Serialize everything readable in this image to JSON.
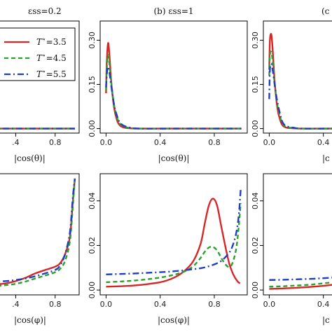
{
  "colors": {
    "red": "#d62728",
    "green": "#2ca02c",
    "blue": "#1f3fbf",
    "axis": "#000000"
  },
  "legend": {
    "placement": "top-left",
    "entries": [
      {
        "label": "T* = 3.5",
        "text_main": "T",
        "text_sup": "⋆",
        "text_val": "=3.5",
        "color": "#d62728",
        "dash": "solid"
      },
      {
        "label": "T* = 4.5",
        "text_main": "T",
        "text_sup": "⋆",
        "text_val": "=4.5",
        "color": "#2ca02c",
        "dash": "dashed"
      },
      {
        "label": "T* = 5.5",
        "text_main": "T",
        "text_sup": "⋆",
        "text_val": "=5.5",
        "color": "#1f3fbf",
        "dash": "dotdash"
      }
    ]
  },
  "chart_data": [
    {
      "id": "top-left",
      "type": "line",
      "title": "εss=0.2",
      "xlabel": "|cos(θ)|",
      "xlim": [
        0,
        1
      ],
      "ylim": [
        0,
        0.35
      ],
      "xticks": [
        0.4,
        0.8
      ],
      "xtick_labels": [
        ".4",
        "0.8"
      ],
      "yticks": [],
      "series": [
        {
          "name": "T* = 3.5",
          "x": [
            0,
            0.25,
            0.5,
            1.0
          ],
          "y": [
            0.0,
            0.0,
            0.0,
            0.0
          ]
        },
        {
          "name": "T* = 4.5",
          "x": [
            0,
            0.25,
            0.5,
            1.0
          ],
          "y": [
            0.0,
            0.0,
            0.0,
            0.0
          ]
        },
        {
          "name": "T* = 5.5",
          "x": [
            0,
            0.25,
            0.5,
            1.0
          ],
          "y": [
            0.0,
            0.0,
            0.0,
            0.0
          ]
        }
      ]
    },
    {
      "id": "top-middle",
      "type": "line",
      "title": "(b) εss=1",
      "xlabel": "|cos(θ)|",
      "xlim": [
        0,
        1
      ],
      "ylim": [
        0,
        0.35
      ],
      "xticks": [
        0.0,
        0.4,
        0.8
      ],
      "xtick_labels": [
        "0.0",
        "0.4",
        "0.8"
      ],
      "yticks": [
        0.0,
        0.15,
        0.3
      ],
      "ytick_labels": [
        "0.00",
        "0.15",
        "0.30"
      ],
      "series": [
        {
          "name": "T* = 3.5",
          "x": [
            0.0,
            0.005,
            0.015,
            0.025,
            0.04,
            0.06,
            0.08,
            0.1,
            0.13,
            0.18,
            0.25,
            0.5,
            1.0
          ],
          "y": [
            0.12,
            0.22,
            0.29,
            0.25,
            0.15,
            0.07,
            0.03,
            0.012,
            0.004,
            0.001,
            0.0,
            0.0,
            0.0
          ]
        },
        {
          "name": "T* = 4.5",
          "x": [
            0.0,
            0.005,
            0.015,
            0.025,
            0.04,
            0.06,
            0.08,
            0.1,
            0.13,
            0.18,
            0.25,
            0.5,
            1.0
          ],
          "y": [
            0.13,
            0.2,
            0.25,
            0.22,
            0.15,
            0.08,
            0.04,
            0.018,
            0.007,
            0.002,
            0.0,
            0.0,
            0.0
          ]
        },
        {
          "name": "T* = 5.5",
          "x": [
            0.0,
            0.005,
            0.015,
            0.025,
            0.04,
            0.06,
            0.08,
            0.1,
            0.13,
            0.18,
            0.25,
            0.5,
            1.0
          ],
          "y": [
            0.14,
            0.18,
            0.21,
            0.19,
            0.14,
            0.08,
            0.045,
            0.022,
            0.01,
            0.003,
            0.0,
            0.0,
            0.0
          ]
        }
      ]
    },
    {
      "id": "top-right",
      "type": "line",
      "title": "(c",
      "xlabel": "|c",
      "xlim": [
        0,
        1
      ],
      "ylim": [
        0,
        0.35
      ],
      "xticks": [
        0.0,
        0.4
      ],
      "xtick_labels": [
        "0.0",
        "0.4"
      ],
      "yticks": [
        0.0,
        0.15,
        0.3
      ],
      "ytick_labels": [
        "0.00",
        "0.15",
        "0.30"
      ],
      "series": [
        {
          "name": "T* = 3.5",
          "x": [
            0.0,
            0.005,
            0.015,
            0.025,
            0.04,
            0.06,
            0.08,
            0.1,
            0.13,
            0.18,
            0.25,
            0.5,
            1.0
          ],
          "y": [
            0.2,
            0.3,
            0.32,
            0.27,
            0.16,
            0.07,
            0.03,
            0.01,
            0.003,
            0.001,
            0.0,
            0.0,
            0.0
          ]
        },
        {
          "name": "T* = 4.5",
          "x": [
            0.0,
            0.005,
            0.015,
            0.025,
            0.04,
            0.06,
            0.08,
            0.1,
            0.13,
            0.18,
            0.25,
            0.5,
            1.0
          ],
          "y": [
            0.18,
            0.25,
            0.26,
            0.23,
            0.15,
            0.08,
            0.04,
            0.015,
            0.005,
            0.002,
            0.0,
            0.0,
            0.0
          ]
        },
        {
          "name": "T* = 5.5",
          "x": [
            0.0,
            0.005,
            0.015,
            0.025,
            0.04,
            0.06,
            0.08,
            0.1,
            0.13,
            0.18,
            0.25,
            0.5,
            1.0
          ],
          "y": [
            0.1,
            0.2,
            0.22,
            0.2,
            0.15,
            0.09,
            0.05,
            0.02,
            0.008,
            0.003,
            0.0,
            0.0,
            0.0
          ]
        }
      ]
    },
    {
      "id": "bottom-left",
      "type": "line",
      "title": "",
      "xlabel": "|cos(φ)|",
      "xlim": [
        0,
        1
      ],
      "ylim": [
        0,
        0.05
      ],
      "xticks": [
        0.4,
        0.8
      ],
      "xtick_labels": [
        ".4",
        "0.8"
      ],
      "yticks": [],
      "series": [
        {
          "name": "T* = 3.5",
          "x": [
            0.0,
            0.1,
            0.2,
            0.3,
            0.4,
            0.5,
            0.6,
            0.7,
            0.8,
            0.85,
            0.9,
            0.95,
            0.98,
            1.0
          ],
          "y": [
            0.002,
            0.002,
            0.0025,
            0.003,
            0.004,
            0.0055,
            0.0075,
            0.009,
            0.0105,
            0.012,
            0.016,
            0.024,
            0.04,
            0.05
          ]
        },
        {
          "name": "T* = 4.5",
          "x": [
            0.0,
            0.1,
            0.2,
            0.3,
            0.4,
            0.5,
            0.6,
            0.7,
            0.8,
            0.85,
            0.9,
            0.95,
            0.98,
            1.0
          ],
          "y": [
            0.0015,
            0.0016,
            0.0018,
            0.0022,
            0.0028,
            0.0038,
            0.0052,
            0.0065,
            0.008,
            0.0095,
            0.013,
            0.022,
            0.038,
            0.05
          ]
        },
        {
          "name": "T* = 5.5",
          "x": [
            0.0,
            0.1,
            0.2,
            0.3,
            0.4,
            0.5,
            0.6,
            0.7,
            0.8,
            0.85,
            0.9,
            0.95,
            0.98,
            1.0
          ],
          "y": [
            0.0035,
            0.0036,
            0.0038,
            0.004,
            0.0045,
            0.0052,
            0.0062,
            0.0075,
            0.009,
            0.011,
            0.016,
            0.026,
            0.042,
            0.05
          ]
        }
      ]
    },
    {
      "id": "bottom-middle",
      "type": "line",
      "title": "",
      "xlabel": "|cos(φ)|",
      "xlim": [
        0,
        1
      ],
      "ylim": [
        0,
        0.05
      ],
      "xticks": [
        0.0,
        0.4,
        0.8
      ],
      "xtick_labels": [
        "0.0",
        "0.4",
        "0.8"
      ],
      "yticks": [
        0.0,
        0.02,
        0.04
      ],
      "ytick_labels": [
        "0.00",
        "0.02",
        "0.04"
      ],
      "series": [
        {
          "name": "T* = 3.5",
          "x": [
            0.0,
            0.1,
            0.2,
            0.3,
            0.4,
            0.45,
            0.5,
            0.55,
            0.6,
            0.65,
            0.7,
            0.73,
            0.76,
            0.79,
            0.82,
            0.85,
            0.88,
            0.91,
            0.94,
            0.97,
            0.99
          ],
          "y": [
            0.0015,
            0.0017,
            0.002,
            0.0026,
            0.0035,
            0.0043,
            0.0055,
            0.0072,
            0.0097,
            0.0135,
            0.021,
            0.03,
            0.038,
            0.041,
            0.038,
            0.029,
            0.02,
            0.012,
            0.007,
            0.004,
            0.003
          ]
        },
        {
          "name": "T* = 4.5",
          "x": [
            0.0,
            0.1,
            0.2,
            0.3,
            0.4,
            0.5,
            0.55,
            0.6,
            0.65,
            0.7,
            0.74,
            0.78,
            0.82,
            0.86,
            0.9,
            0.93,
            0.96,
            0.98,
            0.995
          ],
          "y": [
            0.0035,
            0.0038,
            0.0042,
            0.0048,
            0.0056,
            0.0068,
            0.0077,
            0.0089,
            0.011,
            0.0145,
            0.018,
            0.0195,
            0.0178,
            0.0135,
            0.0105,
            0.0115,
            0.018,
            0.028,
            0.039
          ]
        },
        {
          "name": "T* = 5.5",
          "x": [
            0.0,
            0.1,
            0.2,
            0.3,
            0.4,
            0.5,
            0.6,
            0.7,
            0.75,
            0.8,
            0.85,
            0.9,
            0.93,
            0.96,
            0.98,
            0.995
          ],
          "y": [
            0.007,
            0.0072,
            0.0074,
            0.0077,
            0.008,
            0.0084,
            0.009,
            0.0098,
            0.0105,
            0.0115,
            0.013,
            0.016,
            0.019,
            0.025,
            0.033,
            0.045
          ]
        }
      ]
    },
    {
      "id": "bottom-right",
      "type": "line",
      "title": "",
      "xlabel": "|c",
      "xlim": [
        0,
        1
      ],
      "ylim": [
        0,
        0.05
      ],
      "xticks": [
        0.0,
        0.4
      ],
      "xtick_labels": [
        "0.0",
        "0.4"
      ],
      "yticks": [
        0.0,
        0.02,
        0.04
      ],
      "ytick_labels": [
        "0.00",
        "0.02",
        "0.04"
      ],
      "series": [
        {
          "name": "T* = 3.5",
          "x": [
            0.0,
            0.1,
            0.2,
            0.3,
            0.4,
            0.5,
            0.7,
            1.0
          ],
          "y": [
            0.0005,
            0.0007,
            0.001,
            0.0014,
            0.0019,
            0.0026,
            0.004,
            0.006
          ]
        },
        {
          "name": "T* = 4.5",
          "x": [
            0.0,
            0.1,
            0.2,
            0.3,
            0.4,
            0.5,
            0.7,
            1.0
          ],
          "y": [
            0.0015,
            0.0017,
            0.002,
            0.0024,
            0.003,
            0.0037,
            0.005,
            0.007
          ]
        },
        {
          "name": "T* = 5.5",
          "x": [
            0.0,
            0.1,
            0.2,
            0.3,
            0.4,
            0.5,
            0.7,
            1.0
          ],
          "y": [
            0.0045,
            0.0046,
            0.0048,
            0.005,
            0.0053,
            0.0057,
            0.0065,
            0.008
          ]
        }
      ]
    }
  ]
}
